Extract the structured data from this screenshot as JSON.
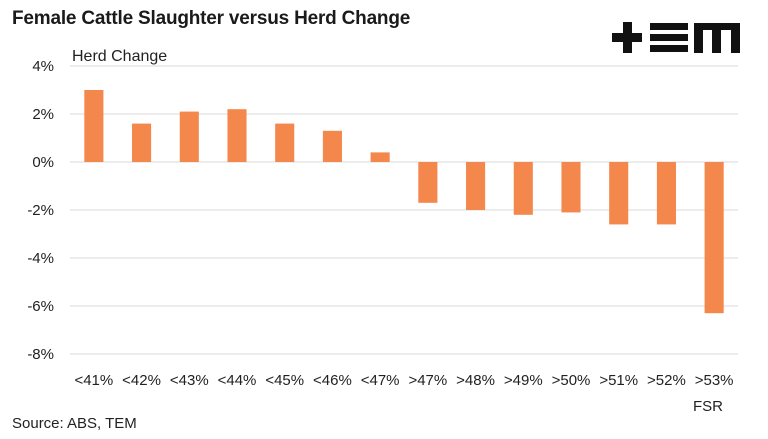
{
  "chart_data": {
    "type": "bar",
    "title": "Female Cattle Slaughter versus Herd Change",
    "ylabel": "Herd Change",
    "xlabel": "FSR",
    "categories": [
      "<41%",
      "<42%",
      "<43%",
      "<44%",
      "<45%",
      "<46%",
      "<47%",
      ">47%",
      ">48%",
      ">49%",
      ">50%",
      ">51%",
      ">52%",
      ">53%"
    ],
    "values": [
      3.0,
      1.6,
      2.1,
      2.2,
      1.6,
      1.3,
      0.4,
      -1.7,
      -2.0,
      -2.2,
      -2.1,
      -2.6,
      -2.6,
      -6.3
    ],
    "ylim": [
      -8,
      4
    ],
    "yticks": [
      4,
      2,
      0,
      -2,
      -4,
      -6,
      -8
    ],
    "ytick_format": "{v}%",
    "grid": true,
    "bar_color": "#F4874B",
    "grid_color": "#d9d9d9"
  },
  "logo": {
    "text": "+EM",
    "color": "#111111"
  },
  "source": "Source: ABS, TEM"
}
